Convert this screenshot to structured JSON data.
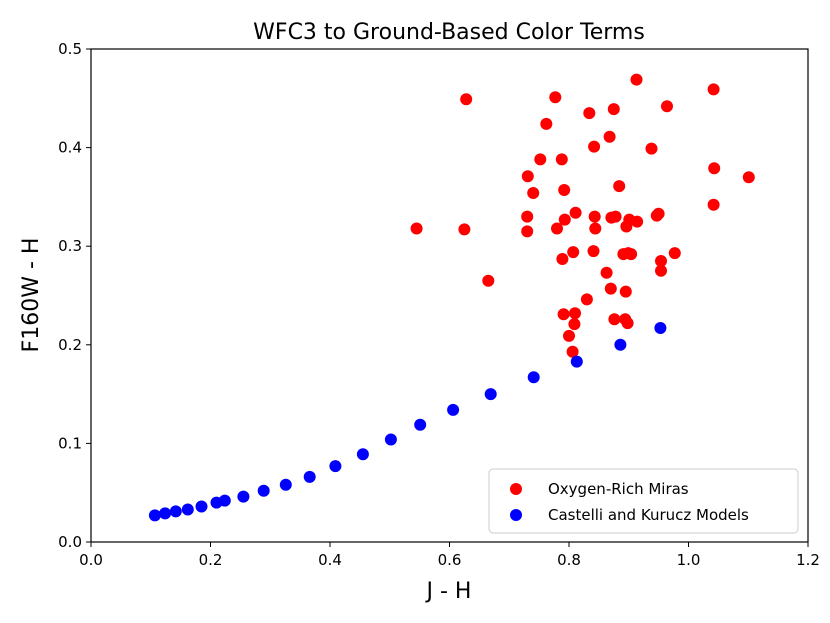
{
  "chart_data": {
    "type": "scatter",
    "title": "WFC3 to Ground-Based Color Terms",
    "xlabel": "J - H",
    "ylabel": "F160W - H",
    "xlim": [
      0.0,
      1.2
    ],
    "ylim": [
      0.0,
      0.5
    ],
    "xticks": [
      "0.0",
      "0.2",
      "0.4",
      "0.6",
      "0.8",
      "1.0",
      "1.2"
    ],
    "yticks": [
      "0.0",
      "0.1",
      "0.2",
      "0.3",
      "0.4",
      "0.5"
    ],
    "grid": false,
    "legend_position": "lower-right",
    "series": [
      {
        "name": "Oxygen-Rich Miras",
        "color": "#ff0000",
        "points": [
          [
            0.913,
            0.469
          ],
          [
            0.628,
            0.449
          ],
          [
            0.777,
            0.451
          ],
          [
            1.042,
            0.459
          ],
          [
            0.964,
            0.442
          ],
          [
            0.875,
            0.439
          ],
          [
            0.834,
            0.435
          ],
          [
            0.762,
            0.424
          ],
          [
            0.868,
            0.411
          ],
          [
            0.938,
            0.399
          ],
          [
            0.842,
            0.401
          ],
          [
            0.752,
            0.388
          ],
          [
            0.788,
            0.388
          ],
          [
            0.731,
            0.371
          ],
          [
            1.043,
            0.379
          ],
          [
            1.101,
            0.37
          ],
          [
            0.884,
            0.361
          ],
          [
            0.74,
            0.354
          ],
          [
            0.792,
            0.357
          ],
          [
            1.042,
            0.342
          ],
          [
            0.73,
            0.33
          ],
          [
            0.811,
            0.334
          ],
          [
            0.793,
            0.327
          ],
          [
            0.843,
            0.33
          ],
          [
            0.871,
            0.329
          ],
          [
            0.878,
            0.33
          ],
          [
            0.901,
            0.327
          ],
          [
            0.914,
            0.325
          ],
          [
            0.947,
            0.331
          ],
          [
            0.95,
            0.333
          ],
          [
            0.545,
            0.318
          ],
          [
            0.625,
            0.317
          ],
          [
            0.73,
            0.315
          ],
          [
            0.78,
            0.318
          ],
          [
            0.844,
            0.318
          ],
          [
            0.896,
            0.32
          ],
          [
            0.807,
            0.294
          ],
          [
            0.841,
            0.295
          ],
          [
            0.891,
            0.292
          ],
          [
            0.899,
            0.293
          ],
          [
            0.904,
            0.292
          ],
          [
            0.789,
            0.287
          ],
          [
            0.954,
            0.285
          ],
          [
            0.977,
            0.293
          ],
          [
            0.863,
            0.273
          ],
          [
            0.954,
            0.275
          ],
          [
            0.665,
            0.265
          ],
          [
            0.87,
            0.257
          ],
          [
            0.895,
            0.254
          ],
          [
            0.83,
            0.246
          ],
          [
            0.81,
            0.232
          ],
          [
            0.791,
            0.231
          ],
          [
            0.876,
            0.226
          ],
          [
            0.894,
            0.226
          ],
          [
            0.898,
            0.222
          ],
          [
            0.809,
            0.221
          ],
          [
            0.8,
            0.209
          ],
          [
            0.806,
            0.193
          ]
        ]
      },
      {
        "name": "Castelli and Kurucz Models",
        "color": "#0000ff",
        "points": [
          [
            0.107,
            0.027
          ],
          [
            0.124,
            0.029
          ],
          [
            0.142,
            0.031
          ],
          [
            0.162,
            0.033
          ],
          [
            0.185,
            0.036
          ],
          [
            0.21,
            0.04
          ],
          [
            0.224,
            0.042
          ],
          [
            0.255,
            0.046
          ],
          [
            0.289,
            0.052
          ],
          [
            0.326,
            0.058
          ],
          [
            0.366,
            0.066
          ],
          [
            0.409,
            0.077
          ],
          [
            0.455,
            0.089
          ],
          [
            0.502,
            0.104
          ],
          [
            0.551,
            0.119
          ],
          [
            0.606,
            0.134
          ],
          [
            0.669,
            0.15
          ],
          [
            0.741,
            0.167
          ],
          [
            0.813,
            0.183
          ],
          [
            0.886,
            0.2
          ],
          [
            0.953,
            0.217
          ]
        ]
      }
    ]
  }
}
